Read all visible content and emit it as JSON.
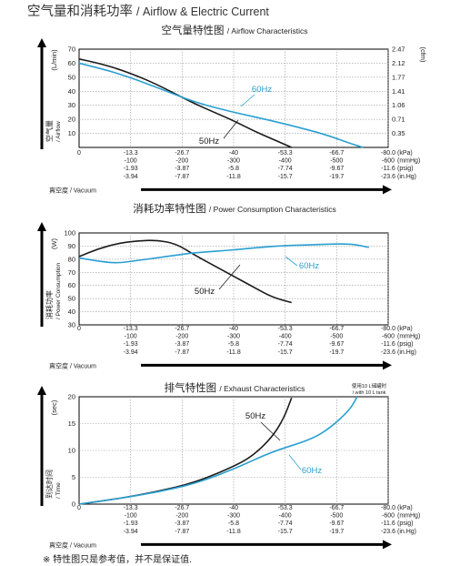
{
  "page": {
    "title_cn": "空气量和消耗功率",
    "title_en": "/ Airflow & Electric Current",
    "footnote": "※ 特性图只是参考值，并不是保证值."
  },
  "colors": {
    "series_50hz": "#1a1a1a",
    "series_60hz": "#2a9fd2",
    "grid": "#9a9a9a",
    "axis": "#000000"
  },
  "pressure_axis": {
    "kpa": [
      "0",
      "-13.3",
      "-26.7",
      "-40",
      "-53.3",
      "-66.7",
      "-80.0"
    ],
    "mmhg": [
      "",
      "-100",
      "-200",
      "-300",
      "-400",
      "-500",
      "-600"
    ],
    "psig": [
      "",
      "-1.93",
      "-3.87",
      "-5.8",
      "-7.74",
      "-9.67",
      "-11.6"
    ],
    "inhg": [
      "",
      "-3.94",
      "-7.87",
      "-11.8",
      "-15.7",
      "-19.7",
      "-23.6"
    ],
    "unit_kpa": "(kPa)",
    "unit_mmhg": "(mmHg)",
    "unit_psig": "(psig)",
    "unit_inhg": "(in.Hg)",
    "vacuum_cn": "真空度",
    "vacuum_en": "/ Vacuum"
  },
  "chart_data": [
    {
      "type": "line",
      "title_cn": "空气量特性图",
      "title_en": "/ Airflow Characteristics",
      "ylabel_unit": "(L/min)",
      "ylabel_cn": "空气量",
      "ylabel_en": "/ Airflow",
      "y2label_unit": "(cfm)",
      "x_label": "Vacuum (kPa)",
      "xlim": [
        0,
        -80
      ],
      "ylim": [
        0,
        70
      ],
      "yticks": [
        10,
        20,
        30,
        40,
        50,
        60,
        70
      ],
      "y2ticks": [
        "0.35",
        "0.71",
        "1.06",
        "1.41",
        "1.77",
        "2.12",
        "2.47"
      ],
      "grid": true,
      "series": [
        {
          "name": "50Hz",
          "x": [
            0,
            -5,
            -10,
            -15,
            -20,
            -25,
            -30,
            -35,
            -40,
            -45,
            -50,
            -55
          ],
          "y": [
            63,
            60,
            56,
            51,
            45,
            38,
            31,
            25,
            19,
            12,
            6,
            0
          ]
        },
        {
          "name": "60Hz",
          "x": [
            0,
            -10,
            -20,
            -30,
            -40,
            -50,
            -60,
            -65,
            -70,
            -73.5
          ],
          "y": [
            60,
            53,
            43,
            32,
            25,
            19,
            12,
            8,
            3,
            0
          ]
        }
      ],
      "annotations": [
        {
          "text": "60Hz"
        },
        {
          "text": "50Hz"
        }
      ]
    },
    {
      "type": "line",
      "title_cn": "消耗功率特性图",
      "title_en": "/ Power Consumption Characteristics",
      "ylabel_unit": "(W)",
      "ylabel_cn": "消耗功率",
      "ylabel_en": "/ Power Consumption",
      "xlim": [
        0,
        -80
      ],
      "ylim": [
        30,
        100
      ],
      "yticks": [
        30,
        40,
        50,
        60,
        70,
        80,
        90,
        100
      ],
      "grid": true,
      "series": [
        {
          "name": "50Hz",
          "x": [
            0,
            -5,
            -10,
            -15,
            -20,
            -25,
            -30,
            -35,
            -40,
            -45,
            -50,
            -55
          ],
          "y": [
            82,
            88,
            92,
            94,
            94.5,
            92,
            83,
            75,
            67,
            59,
            51,
            47
          ]
        },
        {
          "name": "60Hz",
          "x": [
            0,
            -6,
            -10,
            -15,
            -20,
            -25,
            -30,
            -40,
            -50,
            -60,
            -70,
            -75
          ],
          "y": [
            81,
            78,
            77,
            79,
            81,
            83,
            85,
            87,
            90,
            91,
            92,
            89
          ]
        }
      ],
      "annotations": [
        {
          "text": "60Hz"
        },
        {
          "text": "50Hz"
        }
      ]
    },
    {
      "type": "line",
      "title_cn": "排气特性图",
      "title_en": "/ Exhaust Characteristics",
      "ylabel_unit": "(sec)",
      "ylabel_cn": "到达时间",
      "ylabel_en": "/ Time",
      "note_cn": "使用10 L储罐时",
      "note_en": "/ with 10 L tank",
      "xlim": [
        0,
        -80
      ],
      "ylim": [
        0,
        20
      ],
      "yticks": [
        0,
        5,
        10,
        15,
        20
      ],
      "grid": true,
      "series": [
        {
          "name": "50Hz",
          "x": [
            0,
            -10,
            -20,
            -30,
            -40,
            -45,
            -50,
            -53,
            -55
          ],
          "y": [
            0,
            1,
            2.3,
            4,
            7,
            9,
            12.5,
            16,
            19.8
          ]
        },
        {
          "name": "60Hz",
          "x": [
            0,
            -10,
            -20,
            -30,
            -40,
            -50,
            -60,
            -65,
            -70,
            -72
          ],
          "y": [
            0,
            1,
            2.2,
            3.8,
            6.5,
            9.8,
            12,
            14.2,
            17.5,
            20
          ]
        }
      ],
      "annotations": [
        {
          "text": "50Hz"
        },
        {
          "text": "60Hz"
        }
      ]
    }
  ]
}
